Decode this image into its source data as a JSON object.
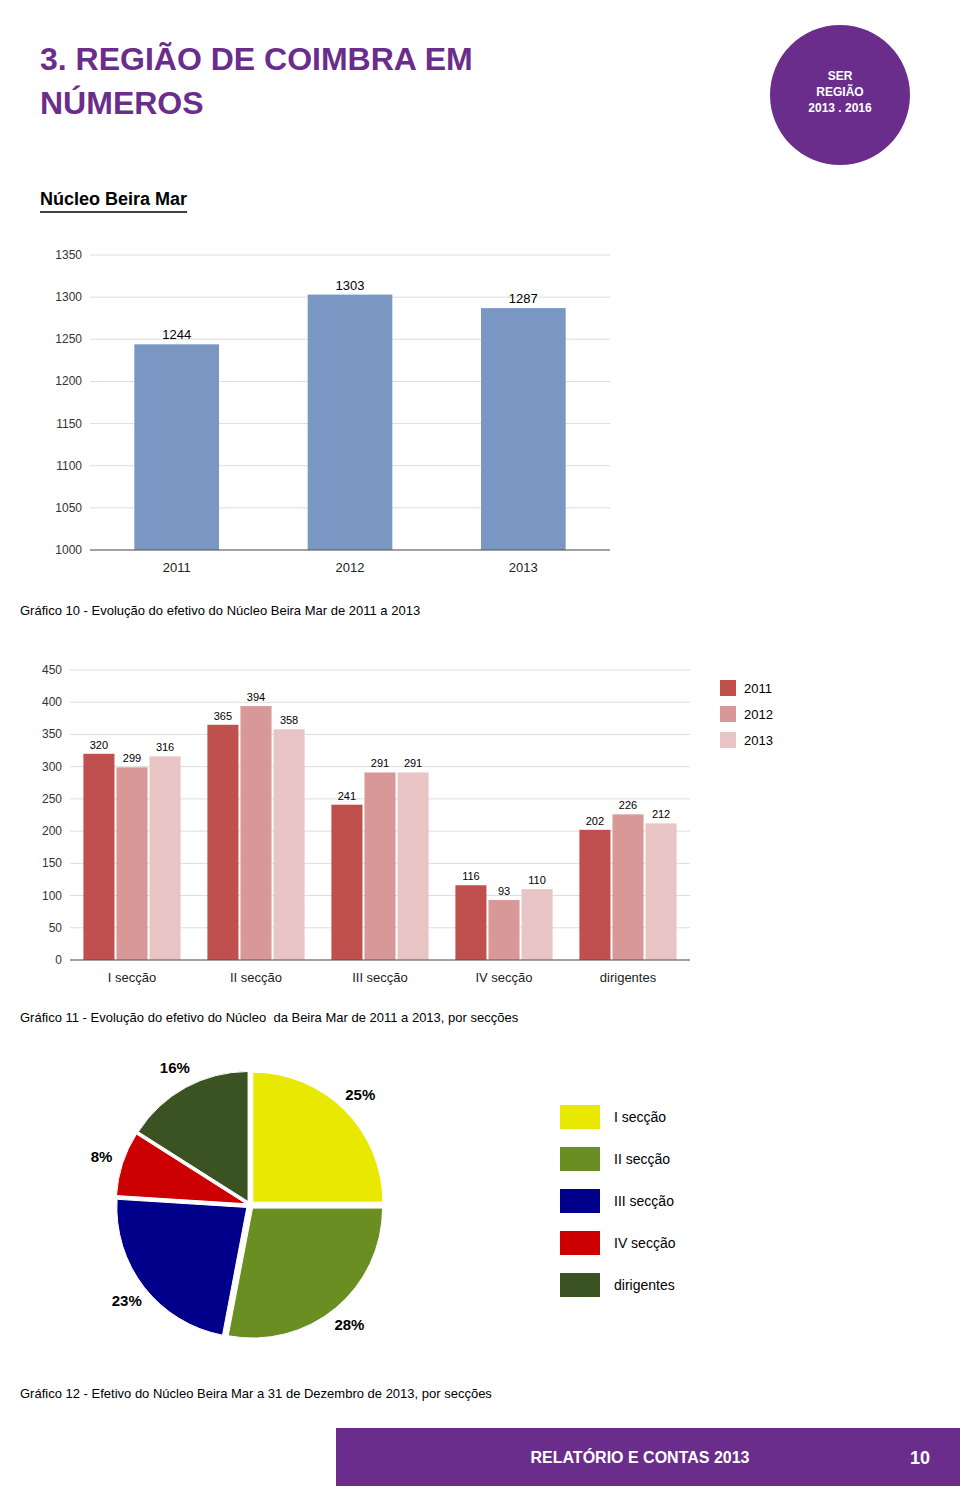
{
  "page": {
    "title": [
      "3. REGIÃO DE COIMBRA EM",
      "NÚMEROS"
    ],
    "color": "#6B2D8B",
    "logo_text": [
      "SER",
      "REGIÃO",
      "2013 . 2016"
    ],
    "section_title": "Núcleo Beira Mar",
    "footer_text": "RELATÓRIO E CONTAS 2013",
    "page_number": "10"
  },
  "chart_data": [
    {
      "type": "bar",
      "title": "Gráfico 10 - Evolução do efetivo do Núcleo Beira Mar de 2011 a 2013",
      "categories": [
        "2011",
        "2012",
        "2013"
      ],
      "values": [
        1244,
        1303,
        1287
      ],
      "color": "#7A96C2",
      "ylim": [
        1000,
        1350
      ],
      "yticks": [
        1000,
        1050,
        1100,
        1150,
        1200,
        1250,
        1300,
        1350
      ],
      "grid": true,
      "data_labels": true
    },
    {
      "type": "bar",
      "title": "Gráfico 11 - Evolução do efetivo do Núcleo  da Beira Mar de 2011 a 2013, por secções",
      "categories": [
        "I secção",
        "II secção",
        "III secção",
        "IV secção",
        "dirigentes"
      ],
      "series": [
        {
          "name": "2011",
          "color": "#C0504D",
          "values": [
            320,
            365,
            241,
            116,
            202
          ]
        },
        {
          "name": "2012",
          "color": "#D99898",
          "values": [
            299,
            394,
            291,
            93,
            226
          ]
        },
        {
          "name": "2013",
          "color": "#E8C4C4",
          "values": [
            316,
            358,
            291,
            110,
            212
          ]
        }
      ],
      "ylim": [
        0,
        450
      ],
      "yticks": [
        0,
        50,
        100,
        150,
        200,
        250,
        300,
        350,
        400,
        450
      ],
      "grid": true,
      "legend": "right",
      "data_labels": true
    },
    {
      "type": "pie",
      "title": "Gráfico 12 - Efetivo do Núcleo Beira Mar a 31 de Dezembro de 2013, por secções",
      "categories": [
        "I secção",
        "II secção",
        "III secção",
        "IV secção",
        "dirigentes"
      ],
      "values": [
        25,
        28,
        23,
        8,
        16
      ],
      "value_labels": [
        "25%",
        "28%",
        "23%",
        "8%",
        "16%"
      ],
      "colors": [
        "#E8E800",
        "#6B8E23",
        "#00008B",
        "#CC0000",
        "#3B5323"
      ],
      "legend": "right",
      "data_labels": true
    }
  ]
}
